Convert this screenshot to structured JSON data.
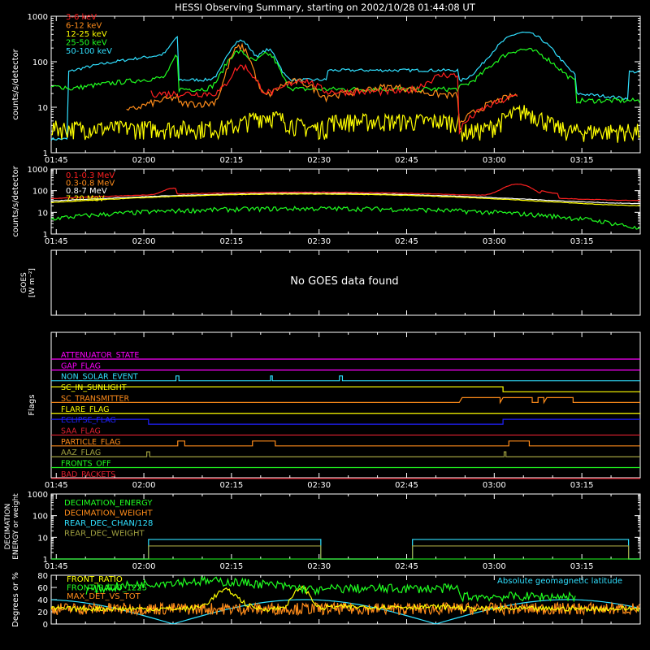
{
  "title": "HESSI Observing Summary, starting on 2002/10/28 01:44:08 UT",
  "time_ticks": [
    "01:45",
    "02:00",
    "02:15",
    "02:30",
    "02:45",
    "03:00",
    "03:15"
  ],
  "colors": {
    "white": "#ffffff",
    "red": "#ff2020",
    "orange": "#ff8c1a",
    "yellow": "#ffff00",
    "green": "#20ff20",
    "cyan": "#30e0ff",
    "magenta": "#ff00ff",
    "blue": "#2020ff",
    "olive": "#a0a040",
    "darkred": "#e02030"
  },
  "chart_data": [
    {
      "id": "panel1",
      "type": "line",
      "ylabel": "counts/s/detector",
      "y_scale": "log",
      "ylim": [
        1,
        1000
      ],
      "yticks": [
        "1",
        "10",
        "100",
        "1000"
      ],
      "series": [
        {
          "name": "3-6 keV",
          "color": "red"
        },
        {
          "name": "6-12 keV",
          "color": "orange"
        },
        {
          "name": "12-25 keV",
          "color": "yellow"
        },
        {
          "name": "25-50 keV",
          "color": "green"
        },
        {
          "name": "50-100 keV",
          "color": "cyan"
        }
      ]
    },
    {
      "id": "panel2",
      "type": "line",
      "ylabel": "counts/s/detector",
      "y_scale": "log",
      "ylim": [
        1,
        1000
      ],
      "yticks": [
        "1",
        "10",
        "100",
        "1000"
      ],
      "series": [
        {
          "name": "0.1-0.3 MeV",
          "color": "red"
        },
        {
          "name": "0.3-0.8 MeV",
          "color": "orange"
        },
        {
          "name": "0.8-7 MeV",
          "color": "white"
        },
        {
          "name": "7-20 MeV",
          "color": "yellow"
        }
      ]
    },
    {
      "id": "panel3",
      "type": "line",
      "ylabel_main": "GOES",
      "ylabel_unit": "[W m⁻²]",
      "message": "No GOES data found"
    },
    {
      "id": "flags",
      "type": "line",
      "ylabel": "Flags",
      "flags": [
        {
          "name": "ATTENUATOR_STATE",
          "color": "magenta"
        },
        {
          "name": "GAP_FLAG",
          "color": "magenta"
        },
        {
          "name": "NON_SOLAR_EVENT",
          "color": "cyan"
        },
        {
          "name": "SC_IN_SUNLIGHT",
          "color": "yellow"
        },
        {
          "name": "SC_TRANSMITTER",
          "color": "orange"
        },
        {
          "name": "FLARE_FLAG",
          "color": "yellow"
        },
        {
          "name": "ECLIPSE_FLAG",
          "color": "blue"
        },
        {
          "name": "SAA_FLAG",
          "color": "darkred"
        },
        {
          "name": "PARTICLE_FLAG",
          "color": "orange"
        },
        {
          "name": "AAZ_FLAG",
          "color": "olive"
        },
        {
          "name": "FRONTS_OFF",
          "color": "green"
        },
        {
          "name": "BAD_PACKETS",
          "color": "darkred"
        }
      ]
    },
    {
      "id": "decimation",
      "type": "line",
      "ylabel": "DECIMATION ENERGY or weight",
      "y_scale": "log",
      "ylim": [
        1,
        1000
      ],
      "yticks": [
        "1",
        "10",
        "100",
        "1000"
      ],
      "series": [
        {
          "name": "DECIMATION_ENERGY",
          "color": "green"
        },
        {
          "name": "DECIMATION_WEIGHT",
          "color": "orange"
        },
        {
          "name": "REAR_DEC_CHAN/128",
          "color": "cyan"
        },
        {
          "name": "REAR_DEC_WEIGHT",
          "color": "olive"
        }
      ]
    },
    {
      "id": "ratios",
      "type": "line",
      "ylabel": "Degrees or %",
      "ylim": [
        0,
        80
      ],
      "yticks": [
        "0",
        "20",
        "40",
        "60",
        "80"
      ],
      "annotation": "Absolute geomagnetic latitude",
      "series": [
        {
          "name": "FRONT_RATIO",
          "color": "yellow"
        },
        {
          "name": "FRONT_RATIO_1225",
          "color": "green"
        },
        {
          "name": "MAX_DET_VS_TOT",
          "color": "orange"
        }
      ]
    }
  ]
}
